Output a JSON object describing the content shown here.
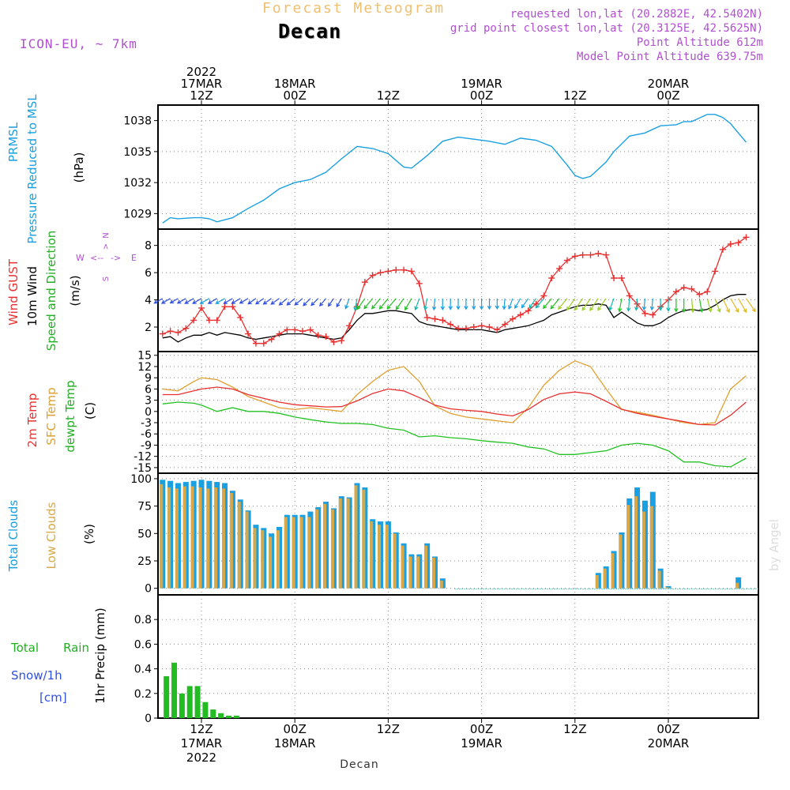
{
  "header": {
    "super_title": "Forecast Meteogram",
    "title": "Decan",
    "model": "ICON-EU, ~ 7km",
    "requested": "requested lon,lat (20.2882E, 42.5402N)",
    "grid_point": "grid point closest lon,lat (20.3125E, 42.5625N)",
    "point_altitude": "Point Altitude 612m",
    "model_altitude": "Model Point Altitude 639.75m",
    "xlabel_bottom": "Decan",
    "credit": "by Angel"
  },
  "colors": {
    "pressure": "#1aa0e0",
    "gust": "#e83030",
    "wind": "#000000",
    "temp2m": "#e83030",
    "sfctemp": "#e0a030",
    "dewpt": "#22c022",
    "total_clouds": "#1aa0e0",
    "low_clouds": "#d8a848",
    "rain": "#22bb22",
    "snow": "#3050e0",
    "title_orange": "#f0c070",
    "info_purple": "#b050d0"
  },
  "top_axis": {
    "labels": [
      {
        "h": 0,
        "lines": [
          "2022",
          "17MAR",
          "12Z"
        ]
      },
      {
        "h": 12,
        "lines": [
          "18MAR",
          "00Z"
        ]
      },
      {
        "h": 24,
        "lines": [
          "12Z"
        ]
      },
      {
        "h": 36,
        "lines": [
          "19MAR",
          "00Z"
        ]
      },
      {
        "h": 48,
        "lines": [
          "12Z"
        ]
      },
      {
        "h": 60,
        "lines": [
          "20MAR",
          "00Z"
        ]
      }
    ]
  },
  "bottom_axis": {
    "labels": [
      {
        "h": 0,
        "lines": [
          "12Z",
          "17MAR",
          "2022"
        ]
      },
      {
        "h": 12,
        "lines": [
          "00Z",
          "18MAR"
        ]
      },
      {
        "h": 24,
        "lines": [
          "12Z"
        ]
      },
      {
        "h": 36,
        "lines": [
          "00Z",
          "19MAR"
        ]
      },
      {
        "h": 48,
        "lines": [
          "12Z"
        ]
      },
      {
        "h": 60,
        "lines": [
          "00Z",
          "20MAR"
        ]
      }
    ]
  },
  "panel_labels": {
    "pressure": [
      "PRMSL",
      "Pressure Reduced to MSL",
      "(hPa)"
    ],
    "wind": [
      "Wind GUST",
      "10m Wind",
      "Speed and Direction",
      "(m/s)"
    ],
    "compass": [
      "N",
      "W",
      "E",
      "S"
    ],
    "temp": [
      "2m Temp",
      "SFC Temp",
      "dewpt Temp",
      "(C)"
    ],
    "clouds": [
      "Total Clouds",
      "Low Clouds",
      "(%)"
    ],
    "precip": [
      "Total",
      "Rain",
      "Snow/1h",
      "[cm]",
      "1hr Precip (mm)"
    ]
  },
  "chart_data": [
    {
      "type": "line",
      "title": "PRMSL Pressure Reduced to MSL",
      "ylabel": "(hPa)",
      "ylim": [
        1027.5,
        1039.5
      ],
      "yticks": [
        1029,
        1032,
        1035,
        1038
      ],
      "x_hours_from_17MAR12Z": [
        -5,
        -4,
        -3,
        -1,
        0,
        1,
        2,
        3,
        4,
        6,
        8,
        10,
        12,
        14,
        16,
        18,
        20,
        22,
        24,
        26,
        27,
        29,
        31,
        33,
        35,
        37,
        39,
        41,
        43,
        45,
        47,
        48,
        49,
        50,
        52,
        53,
        55,
        57,
        59,
        61,
        62,
        63,
        65,
        66,
        67,
        68,
        69,
        70
      ],
      "series": [
        {
          "name": "PRMSL",
          "values": [
            1028.1,
            1028.6,
            1028.5,
            1028.6,
            1028.6,
            1028.5,
            1028.2,
            1028.4,
            1028.6,
            1029.5,
            1030.3,
            1031.4,
            1032.0,
            1032.3,
            1033.0,
            1034.3,
            1035.5,
            1035.3,
            1034.8,
            1033.5,
            1033.4,
            1034.6,
            1036.0,
            1036.4,
            1036.2,
            1036.0,
            1035.7,
            1036.3,
            1036.1,
            1035.5,
            1033.7,
            1032.7,
            1032.4,
            1032.6,
            1034.0,
            1035.0,
            1036.5,
            1036.8,
            1037.5,
            1037.6,
            1037.9,
            1037.9,
            1038.6,
            1038.6,
            1038.3,
            1037.7,
            1036.8,
            1035.9
          ]
        }
      ]
    },
    {
      "type": "line",
      "title": "Wind GUST / 10m Wind Speed and Direction",
      "ylabel": "(m/s)",
      "ylim": [
        0.2,
        9.2
      ],
      "yticks": [
        2,
        4,
        6,
        8
      ],
      "x_hours_from_17MAR12Z": [
        -5,
        -4,
        -3,
        -2,
        -1,
        0,
        1,
        2,
        3,
        4,
        5,
        6,
        7,
        8,
        9,
        10,
        11,
        12,
        13,
        14,
        15,
        16,
        17,
        18,
        19,
        20,
        21,
        22,
        23,
        24,
        25,
        26,
        27,
        28,
        29,
        30,
        31,
        32,
        33,
        34,
        35,
        36,
        37,
        38,
        39,
        40,
        41,
        42,
        43,
        44,
        45,
        46,
        47,
        48,
        49,
        50,
        51,
        52,
        53,
        54,
        55,
        56,
        57,
        58,
        59,
        60,
        61,
        62,
        63,
        64,
        65,
        66,
        67,
        68,
        69,
        70
      ],
      "series": [
        {
          "name": "Wind GUST",
          "values": [
            1.5,
            1.7,
            1.6,
            1.9,
            2.5,
            3.4,
            2.5,
            2.5,
            3.5,
            3.5,
            2.7,
            1.5,
            0.8,
            0.8,
            1.1,
            1.5,
            1.8,
            1.8,
            1.7,
            1.8,
            1.4,
            1.3,
            0.9,
            1.0,
            2.1,
            3.5,
            5.3,
            5.8,
            6.0,
            6.1,
            6.2,
            6.2,
            6.1,
            5.2,
            2.7,
            2.6,
            2.5,
            2.2,
            1.9,
            1.9,
            2.0,
            2.1,
            2.0,
            1.8,
            2.2,
            2.6,
            2.9,
            3.2,
            3.7,
            4.3,
            5.6,
            6.3,
            6.9,
            7.2,
            7.3,
            7.3,
            7.4,
            7.3,
            5.6,
            5.6,
            4.3,
            3.7,
            3.0,
            2.9,
            3.5,
            4.0,
            4.6,
            4.9,
            4.8,
            4.4,
            4.6,
            6.1,
            7.7,
            8.1,
            8.2,
            8.6
          ]
        },
        {
          "name": "10m Wind",
          "values": [
            1.2,
            1.3,
            0.9,
            1.2,
            1.4,
            1.4,
            1.6,
            1.4,
            1.6,
            1.5,
            1.4,
            1.2,
            1.1,
            1.2,
            1.3,
            1.4,
            1.5,
            1.5,
            1.5,
            1.4,
            1.3,
            1.2,
            1.1,
            1.2,
            1.8,
            2.5,
            3.0,
            3.0,
            3.1,
            3.2,
            3.2,
            3.1,
            3.0,
            2.4,
            2.2,
            2.1,
            2.0,
            1.9,
            1.8,
            1.8,
            1.8,
            1.8,
            1.7,
            1.6,
            1.8,
            1.9,
            2.0,
            2.1,
            2.3,
            2.5,
            2.9,
            3.1,
            3.3,
            3.5,
            3.6,
            3.6,
            3.7,
            3.6,
            2.7,
            3.1,
            2.7,
            2.3,
            2.1,
            2.1,
            2.3,
            2.7,
            3.0,
            3.2,
            3.3,
            3.2,
            3.3,
            3.6,
            4.0,
            4.3,
            4.4,
            4.4
          ]
        },
        {
          "name": "Direction (arrow points toward, deg)",
          "values": [
            240,
            240,
            240,
            240,
            240,
            240,
            240,
            240,
            240,
            240,
            240,
            240,
            235,
            235,
            235,
            235,
            230,
            230,
            230,
            225,
            225,
            220,
            215,
            210,
            200,
            190,
            215,
            220,
            220,
            220,
            220,
            215,
            210,
            200,
            190,
            185,
            180,
            180,
            180,
            180,
            180,
            180,
            180,
            180,
            185,
            200,
            210,
            215,
            215,
            220,
            220,
            220,
            220,
            215,
            215,
            215,
            215,
            215,
            200,
            190,
            185,
            185,
            185,
            185,
            180,
            180,
            180,
            180,
            175,
            170,
            165,
            160,
            155,
            150,
            150,
            145
          ]
        }
      ]
    },
    {
      "type": "line",
      "title": "2m Temp / SFC Temp / dewpt Temp",
      "ylabel": "(C)",
      "ylim": [
        -16.5,
        16
      ],
      "yticks": [
        -15,
        -12,
        -9,
        -6,
        -3,
        0,
        3,
        6,
        9,
        12,
        15
      ],
      "x_hours_from_17MAR12Z": [
        -5,
        -3,
        -1,
        0,
        2,
        4,
        6,
        8,
        10,
        12,
        14,
        16,
        18,
        20,
        22,
        24,
        26,
        28,
        30,
        32,
        34,
        36,
        38,
        40,
        42,
        44,
        46,
        48,
        50,
        52,
        54,
        56,
        58,
        60,
        62,
        64,
        66,
        68,
        70
      ],
      "series": [
        {
          "name": "2m Temp",
          "values": [
            4.5,
            4.5,
            5.5,
            6.0,
            6.5,
            6.0,
            4.5,
            3.5,
            2.5,
            1.8,
            1.5,
            1.2,
            1.3,
            2.8,
            4.8,
            6.0,
            5.5,
            3.7,
            1.7,
            0.7,
            0.3,
            0.0,
            -0.7,
            -1.2,
            0.5,
            3.2,
            4.7,
            5.2,
            4.7,
            2.7,
            0.6,
            -0.5,
            -1.3,
            -2.0,
            -2.7,
            -3.5,
            -3.6,
            -1.0,
            2.5
          ]
        },
        {
          "name": "SFC Temp",
          "values": [
            6.0,
            5.5,
            8.0,
            9.0,
            8.5,
            6.5,
            4.0,
            2.5,
            1.0,
            0.5,
            1.0,
            0.5,
            0.0,
            4.5,
            8.0,
            11.0,
            12.0,
            8.0,
            1.5,
            -0.5,
            -1.5,
            -2.0,
            -2.5,
            -3.0,
            1.0,
            7.0,
            11.0,
            13.5,
            12.0,
            6.0,
            0.5,
            -0.2,
            -1.0,
            -2.0,
            -3.0,
            -3.5,
            -3.0,
            6.0,
            9.5
          ]
        },
        {
          "name": "dewpt Temp",
          "values": [
            2.0,
            2.5,
            2.2,
            1.7,
            0.0,
            1.0,
            0.0,
            0.0,
            -0.5,
            -1.5,
            -2.2,
            -2.8,
            -3.2,
            -3.2,
            -3.5,
            -4.5,
            -5.0,
            -6.8,
            -6.5,
            -7.0,
            -7.3,
            -7.8,
            -8.2,
            -8.5,
            -9.5,
            -10.0,
            -11.5,
            -11.5,
            -11.0,
            -10.5,
            -9.0,
            -8.5,
            -9.0,
            -10.5,
            -13.5,
            -13.5,
            -14.5,
            -14.8,
            -12.5
          ]
        }
      ]
    },
    {
      "type": "bar",
      "title": "Total Clouds / Low Clouds",
      "ylabel": "(%)",
      "ylim": [
        -6,
        105
      ],
      "yticks": [
        0,
        25,
        50,
        75,
        100
      ],
      "x_hours_from_17MAR12Z": [
        -5,
        -4,
        -3,
        -2,
        -1,
        0,
        1,
        2,
        3,
        4,
        5,
        6,
        7,
        8,
        9,
        10,
        11,
        12,
        13,
        14,
        15,
        16,
        17,
        18,
        19,
        20,
        21,
        22,
        23,
        24,
        25,
        26,
        27,
        28,
        29,
        30,
        31,
        32,
        33,
        34,
        35,
        36,
        37,
        38,
        39,
        40,
        41,
        42,
        43,
        44,
        45,
        46,
        47,
        48,
        49,
        50,
        51,
        52,
        53,
        54,
        55,
        56,
        57,
        58,
        59,
        60,
        61,
        62,
        63,
        64,
        65,
        66,
        67,
        68,
        69,
        70
      ],
      "series": [
        {
          "name": "Total Clouds",
          "values": [
            99,
            98,
            96,
            97,
            98,
            99,
            98,
            97,
            96,
            89,
            81,
            71,
            58,
            55,
            50,
            56,
            67,
            67,
            67,
            70,
            74,
            79,
            73,
            84,
            83,
            96,
            92,
            63,
            61,
            61,
            51,
            41,
            31,
            31,
            41,
            29,
            9,
            0,
            0,
            0,
            0,
            0,
            0,
            0,
            0,
            0,
            0,
            0,
            0,
            0,
            0,
            0,
            0,
            0,
            0,
            0,
            14,
            20,
            34,
            51,
            82,
            92,
            80,
            88,
            18,
            2,
            0,
            0,
            0,
            0,
            0,
            0,
            0,
            0,
            10,
            0
          ]
        },
        {
          "name": "Low Clouds",
          "values": [
            95,
            92,
            91,
            93,
            93,
            92,
            91,
            92,
            91,
            87,
            79,
            70,
            55,
            53,
            47,
            53,
            65,
            65,
            65,
            65,
            72,
            77,
            72,
            82,
            82,
            94,
            90,
            61,
            58,
            58,
            50,
            39,
            29,
            29,
            39,
            28,
            7,
            0,
            0,
            0,
            0,
            0,
            0,
            0,
            0,
            0,
            0,
            0,
            0,
            0,
            0,
            0,
            0,
            0,
            0,
            0,
            12,
            18,
            32,
            49,
            76,
            84,
            70,
            75,
            16,
            1,
            0,
            0,
            0,
            0,
            0,
            0,
            0,
            0,
            5,
            0
          ]
        }
      ]
    },
    {
      "type": "bar",
      "title": "1hr Precip",
      "ylabel": "1hr Precip (mm)",
      "ylim": [
        0,
        1.0
      ],
      "yticks": [
        0,
        0.2,
        0.4,
        0.6,
        0.8
      ],
      "x_hours_from_17MAR12Z": [
        -4.5,
        -3.5,
        -2.5,
        -1.5,
        -0.5,
        0.5,
        1.5,
        2.5,
        3.5,
        4.5
      ],
      "series": [
        {
          "name": "Total Rain",
          "values": [
            0.34,
            0.45,
            0.2,
            0.26,
            0.26,
            0.13,
            0.07,
            0.04,
            0.02,
            0.02
          ]
        },
        {
          "name": "Snow/1h",
          "values": [
            0,
            0,
            0,
            0,
            0,
            0,
            0,
            0,
            0,
            0
          ]
        }
      ]
    }
  ]
}
